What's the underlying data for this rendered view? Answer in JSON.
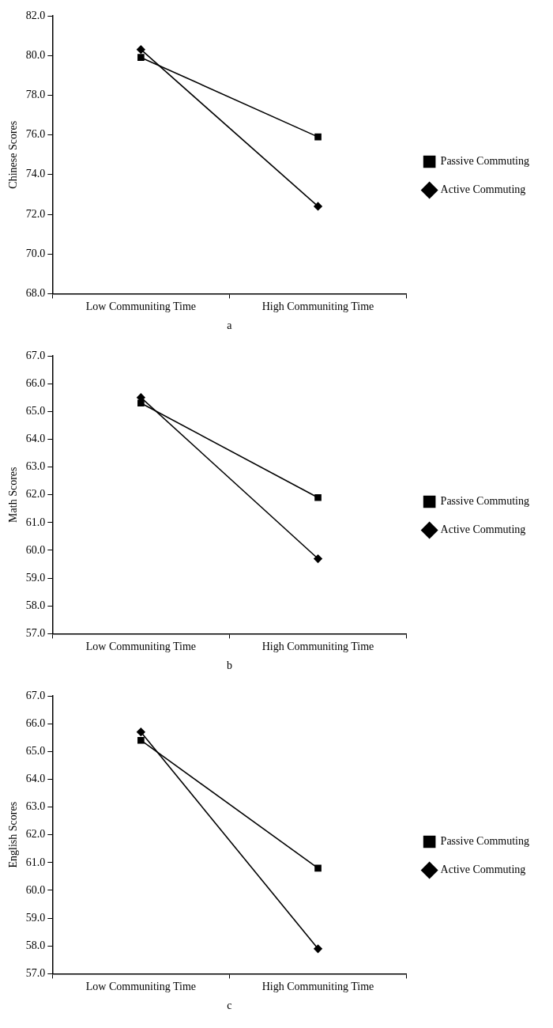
{
  "chart_data": [
    {
      "type": "line",
      "xlabel": "a",
      "ylabel": "Chinese Scores",
      "categories": [
        "Low Communiting Time",
        "High Communiting Time"
      ],
      "series": [
        {
          "name": "Passive Commuting",
          "color": "#000000",
          "marker": "square",
          "values": [
            79.9,
            75.9
          ]
        },
        {
          "name": "Active Commuting",
          "color": "#000000",
          "marker": "diamond",
          "values": [
            80.3,
            72.4
          ]
        }
      ],
      "ylim": [
        68,
        82
      ],
      "yticks": [
        {
          "value": 68,
          "label": "68.0"
        },
        {
          "value": 70,
          "label": "70.0"
        },
        {
          "value": 72,
          "label": "72.0"
        },
        {
          "value": 74,
          "label": "74.0"
        },
        {
          "value": 76,
          "label": "76.0"
        },
        {
          "value": 78,
          "label": "78.0"
        },
        {
          "value": 80,
          "label": "80.0"
        },
        {
          "value": 82,
          "label": "82.0"
        }
      ],
      "grid": false,
      "legend": "right"
    },
    {
      "type": "line",
      "xlabel": "b",
      "ylabel": "Math Scores",
      "categories": [
        "Low Communiting Time",
        "High Communiting Time"
      ],
      "series": [
        {
          "name": "Passive Commuting",
          "color": "#000000",
          "marker": "square",
          "values": [
            65.3,
            61.9
          ]
        },
        {
          "name": "Active Commuting",
          "color": "#000000",
          "marker": "diamond",
          "values": [
            65.5,
            59.7
          ]
        }
      ],
      "ylim": [
        57,
        67
      ],
      "yticks": [
        {
          "value": 57,
          "label": "57.0"
        },
        {
          "value": 58,
          "label": "58.0"
        },
        {
          "value": 59,
          "label": "59.0"
        },
        {
          "value": 60,
          "label": "60.0"
        },
        {
          "value": 61,
          "label": "61.0"
        },
        {
          "value": 62,
          "label": "62.0"
        },
        {
          "value": 63,
          "label": "63.0"
        },
        {
          "value": 64,
          "label": "64.0"
        },
        {
          "value": 65,
          "label": "65.0"
        },
        {
          "value": 66,
          "label": "66.0"
        },
        {
          "value": 67,
          "label": "67.0"
        }
      ],
      "grid": false,
      "legend": "right"
    },
    {
      "type": "line",
      "xlabel": "c",
      "ylabel": "English Scores",
      "categories": [
        "Low Communiting Time",
        "High Communiting Time"
      ],
      "series": [
        {
          "name": "Passive Commuting",
          "color": "#000000",
          "marker": "square",
          "values": [
            65.4,
            60.8
          ]
        },
        {
          "name": "Active Commuting",
          "color": "#000000",
          "marker": "diamond",
          "values": [
            65.7,
            57.9
          ]
        }
      ],
      "ylim": [
        57,
        67
      ],
      "yticks": [
        {
          "value": 57,
          "label": "57.0"
        },
        {
          "value": 58,
          "label": "58.0"
        },
        {
          "value": 59,
          "label": "59.0"
        },
        {
          "value": 60,
          "label": "60.0"
        },
        {
          "value": 61,
          "label": "61.0"
        },
        {
          "value": 62,
          "label": "62.0"
        },
        {
          "value": 63,
          "label": "63.0"
        },
        {
          "value": 64,
          "label": "64.0"
        },
        {
          "value": 65,
          "label": "65.0"
        },
        {
          "value": 66,
          "label": "66.0"
        },
        {
          "value": 67,
          "label": "67.0"
        }
      ],
      "grid": false,
      "legend": "right"
    }
  ]
}
